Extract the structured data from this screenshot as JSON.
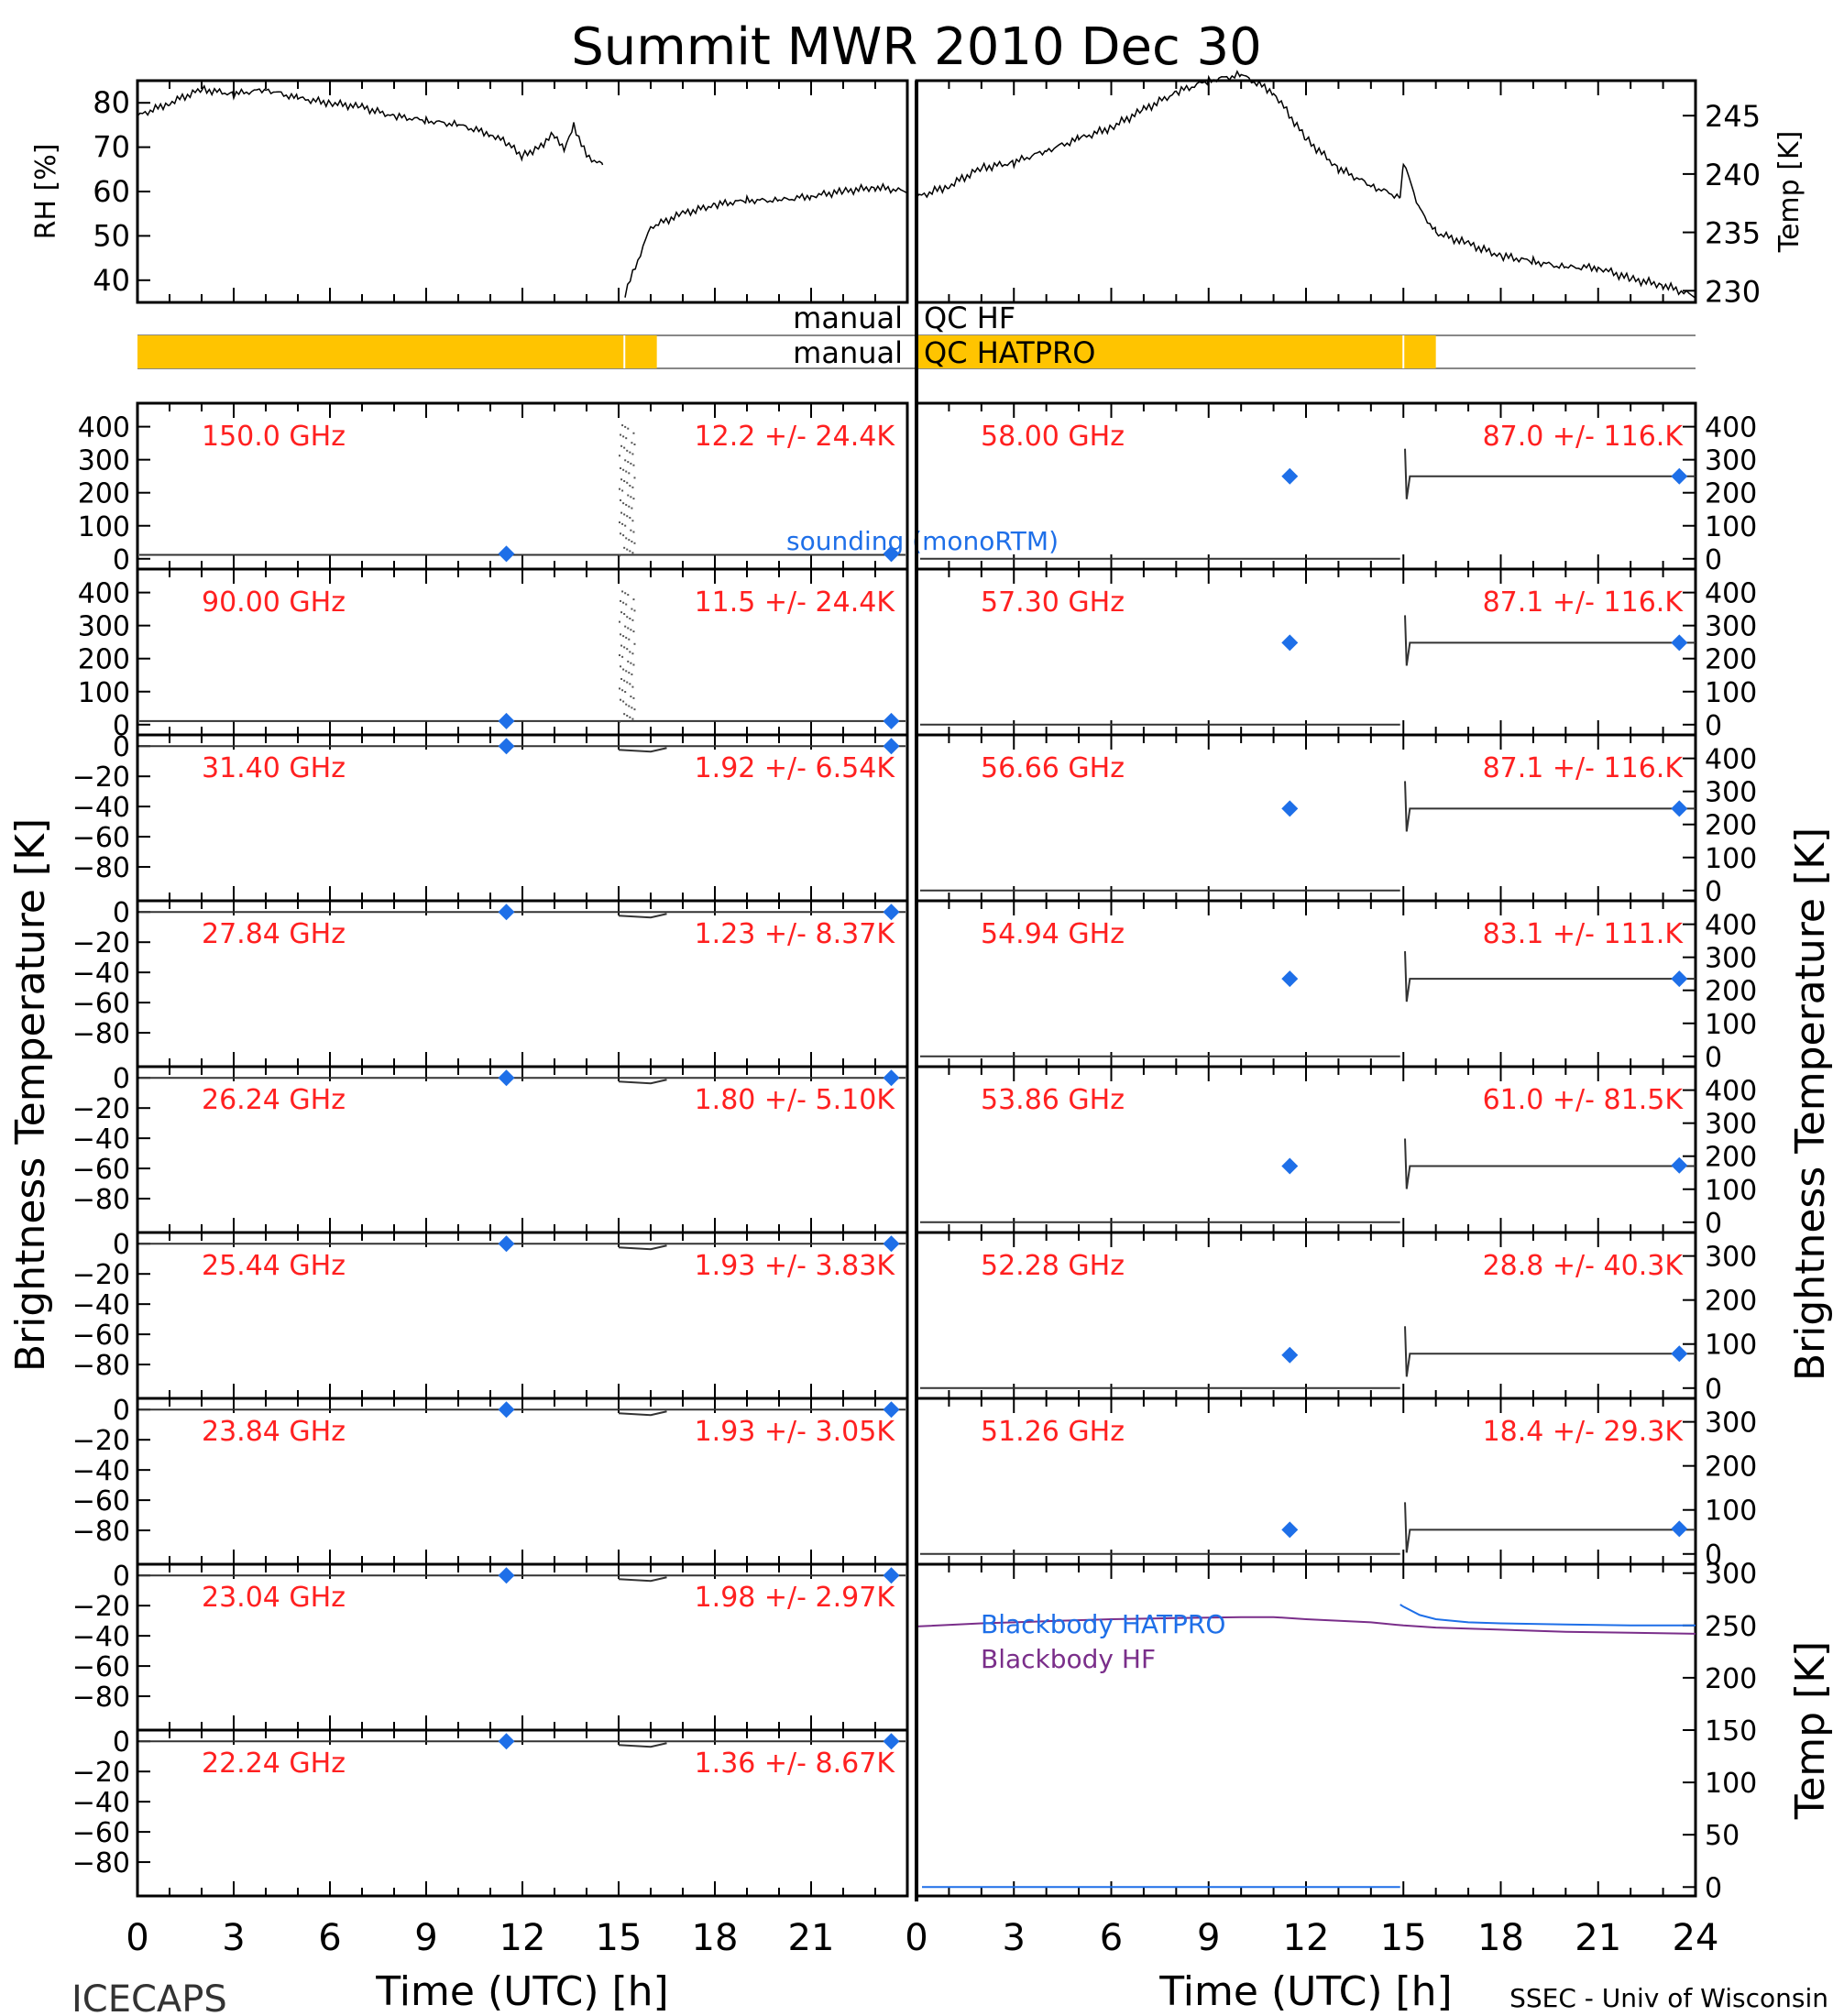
{
  "title": "Summit MWR 2010 Dec 30",
  "footer": {
    "left": "ICECAPS",
    "right": "SSEC - Univ of Wisconsin"
  },
  "axes": {
    "xlabel": "Time (UTC) [h]",
    "xticks": [
      0,
      3,
      6,
      9,
      12,
      15,
      18,
      21
    ],
    "xticks_right": [
      0,
      3,
      6,
      9,
      12,
      15,
      18,
      21,
      24
    ],
    "left_ylabel": "Brightness Temperature [K]",
    "right_ylabel": "Brightness Temperature [K]",
    "rh_label": "RH [%]",
    "temp_label": "Temp [K]",
    "bb_temp_label": "Temp [K]"
  },
  "qc": {
    "hf_label": "manual",
    "hf_name": "QC HF",
    "hatpro_label": "manual",
    "hatpro_name": "QC HATPRO",
    "flag_color": "#FFC400",
    "hf_flagged_ranges": [],
    "hatpro_flagged_ranges": [
      [
        0,
        16
      ],
      [
        24,
        40
      ]
    ]
  },
  "legend": {
    "sounding": "sounding (monoRTM)",
    "bb_hatpro": "Blackbody HATPRO",
    "bb_hf": "Blackbody HF"
  },
  "colors": {
    "label": "#FF2020",
    "sounding": "#1E6FE8",
    "bb_hatpro": "#1E6FE8",
    "bb_hf": "#7A2E8A",
    "line": "#000000"
  },
  "chart_data": [
    {
      "type": "line",
      "name": "RH",
      "ylabel": "RH [%]",
      "ylim": [
        35,
        85
      ],
      "yticks": [
        40,
        50,
        60,
        70,
        80
      ],
      "x": [
        0,
        1,
        2,
        3,
        4,
        5,
        6,
        7,
        8,
        9,
        10,
        11,
        11.5,
        12,
        12.5,
        13,
        13.3,
        13.6,
        14,
        14.5,
        15,
        15.2,
        16,
        17,
        18,
        19,
        20,
        21,
        22,
        23,
        24
      ],
      "y": [
        77,
        80,
        83,
        82,
        83,
        81,
        80,
        79,
        77,
        76,
        75,
        73,
        71,
        68,
        70,
        73,
        69,
        75,
        68,
        66,
        null,
        37,
        52,
        55,
        57,
        58,
        58,
        59,
        60,
        61,
        60
      ]
    },
    {
      "type": "line",
      "name": "Temp",
      "ylabel": "Temp [K]",
      "ylim": [
        229,
        248
      ],
      "yticks": [
        230,
        235,
        240,
        245
      ],
      "x": [
        0,
        1,
        2,
        3,
        4,
        5,
        6,
        7,
        8,
        9,
        10,
        11,
        12,
        13,
        14,
        14.9,
        15,
        15.5,
        16,
        17,
        18,
        19,
        20,
        21,
        22,
        23,
        24
      ],
      "y": [
        238,
        239,
        240.5,
        241,
        242,
        243,
        244,
        245.5,
        247,
        248,
        248.5,
        247,
        243,
        240.5,
        239,
        238,
        241,
        237,
        235,
        234,
        233,
        232.5,
        232,
        232,
        231,
        230.5,
        229.5
      ]
    },
    {
      "type": "line",
      "name": "HF 150.0 GHz",
      "label": "150.0 GHz",
      "stats": "12.2 +/-  24.4K",
      "ylim": [
        -20,
        460
      ],
      "yticks": [
        0,
        100,
        200,
        300,
        400
      ],
      "base": 12,
      "noisy": true,
      "sounding": [
        [
          11.5,
          15
        ],
        [
          23.5,
          15
        ]
      ]
    },
    {
      "type": "line",
      "name": "HF 90.00 GHz",
      "label": "90.00 GHz",
      "stats": "11.5 +/-  24.4K",
      "ylim": [
        -20,
        460
      ],
      "yticks": [
        0,
        100,
        200,
        300,
        400
      ],
      "base": 11,
      "noisy": true,
      "sounding": [
        [
          11.5,
          11
        ],
        [
          23.5,
          11
        ]
      ]
    },
    {
      "type": "line",
      "name": "HF 31.40 GHz",
      "label": "31.40 GHz",
      "stats": "1.92 +/- 6.54K",
      "ylim": [
        -100,
        5
      ],
      "yticks": [
        0,
        -20,
        -40,
        -60,
        -80
      ],
      "base": 0,
      "noisy": false,
      "sounding": [
        [
          11.5,
          0
        ],
        [
          23.5,
          0
        ]
      ]
    },
    {
      "type": "line",
      "name": "HF 27.84 GHz",
      "label": "27.84 GHz",
      "stats": "1.23 +/- 8.37K",
      "ylim": [
        -100,
        5
      ],
      "yticks": [
        0,
        -20,
        -40,
        -60,
        -80
      ],
      "base": 0,
      "noisy": false,
      "sounding": [
        [
          11.5,
          0
        ],
        [
          23.5,
          0
        ]
      ]
    },
    {
      "type": "line",
      "name": "HF 26.24 GHz",
      "label": "26.24 GHz",
      "stats": "1.80 +/- 5.10K",
      "ylim": [
        -100,
        5
      ],
      "yticks": [
        0,
        -20,
        -40,
        -60,
        -80
      ],
      "base": 0,
      "noisy": false,
      "sounding": [
        [
          11.5,
          0
        ],
        [
          23.5,
          0
        ]
      ]
    },
    {
      "type": "line",
      "name": "HF 25.44 GHz",
      "label": "25.44 GHz",
      "stats": "1.93 +/- 3.83K",
      "ylim": [
        -100,
        5
      ],
      "yticks": [
        0,
        -20,
        -40,
        -60,
        -80
      ],
      "base": 0,
      "noisy": false,
      "sounding": [
        [
          11.5,
          0
        ],
        [
          23.5,
          0
        ]
      ]
    },
    {
      "type": "line",
      "name": "HF 23.84 GHz",
      "label": "23.84 GHz",
      "stats": "1.93 +/- 3.05K",
      "ylim": [
        -100,
        5
      ],
      "yticks": [
        0,
        -20,
        -40,
        -60,
        -80
      ],
      "base": 0,
      "noisy": false,
      "sounding": [
        [
          11.5,
          0
        ],
        [
          23.5,
          0
        ]
      ]
    },
    {
      "type": "line",
      "name": "HF 23.04 GHz",
      "label": "23.04 GHz",
      "stats": "1.98 +/- 2.97K",
      "ylim": [
        -100,
        5
      ],
      "yticks": [
        0,
        -20,
        -40,
        -60,
        -80
      ],
      "base": 0,
      "noisy": false,
      "sounding": [
        [
          11.5,
          0
        ],
        [
          23.5,
          0
        ]
      ]
    },
    {
      "type": "line",
      "name": "HF 22.24 GHz",
      "label": "22.24 GHz",
      "stats": "1.36 +/- 8.67K",
      "ylim": [
        -100,
        5
      ],
      "yticks": [
        0,
        -20,
        -40,
        -60,
        -80
      ],
      "base": 0,
      "noisy": false,
      "sounding": [
        [
          11.5,
          0
        ],
        [
          23.5,
          0
        ]
      ]
    },
    {
      "type": "line",
      "name": "HATPRO 58.00 GHz",
      "label": "58.00 GHz",
      "stats": "87.0 +/-  116.K",
      "ylim": [
        -20,
        460
      ],
      "yticks": [
        0,
        100,
        200,
        300,
        400
      ],
      "pre": 0,
      "post": 250,
      "sounding": [
        [
          11.5,
          250
        ],
        [
          23.5,
          250
        ]
      ]
    },
    {
      "type": "line",
      "name": "HATPRO 57.30 GHz",
      "label": "57.30 GHz",
      "stats": "87.1 +/-  116.K",
      "ylim": [
        -20,
        460
      ],
      "yticks": [
        0,
        100,
        200,
        300,
        400
      ],
      "pre": 0,
      "post": 248,
      "sounding": [
        [
          11.5,
          248
        ],
        [
          23.5,
          248
        ]
      ]
    },
    {
      "type": "line",
      "name": "HATPRO 56.66 GHz",
      "label": "56.66 GHz",
      "stats": "87.1 +/-  116.K",
      "ylim": [
        -20,
        460
      ],
      "yticks": [
        0,
        100,
        200,
        300,
        400
      ],
      "pre": 0,
      "post": 248,
      "sounding": [
        [
          11.5,
          248
        ],
        [
          23.5,
          248
        ]
      ]
    },
    {
      "type": "line",
      "name": "HATPRO 54.94 GHz",
      "label": "54.94 GHz",
      "stats": "83.1 +/-  111.K",
      "ylim": [
        -20,
        460
      ],
      "yticks": [
        0,
        100,
        200,
        300,
        400
      ],
      "pre": 0,
      "post": 235,
      "sounding": [
        [
          11.5,
          235
        ],
        [
          23.5,
          235
        ]
      ]
    },
    {
      "type": "line",
      "name": "HATPRO 53.86 GHz",
      "label": "53.86 GHz",
      "stats": "61.0 +/-  81.5K",
      "ylim": [
        -20,
        460
      ],
      "yticks": [
        0,
        100,
        200,
        300,
        400
      ],
      "pre": 0,
      "post": 170,
      "sounding": [
        [
          11.5,
          170
        ],
        [
          23.5,
          172
        ]
      ]
    },
    {
      "type": "line",
      "name": "HATPRO 52.28 GHz",
      "label": "52.28 GHz",
      "stats": "28.8 +/-  40.3K",
      "ylim": [
        -15,
        345
      ],
      "yticks": [
        0,
        100,
        200,
        300
      ],
      "pre": 0,
      "post": 78,
      "sounding": [
        [
          11.5,
          75
        ],
        [
          23.5,
          78
        ]
      ]
    },
    {
      "type": "line",
      "name": "HATPRO 51.26 GHz",
      "label": "51.26 GHz",
      "stats": "18.4 +/-  29.3K",
      "ylim": [
        -15,
        345
      ],
      "yticks": [
        0,
        100,
        200,
        300
      ],
      "pre": 0,
      "post": 55,
      "sounding": [
        [
          11.5,
          55
        ],
        [
          23.5,
          57
        ]
      ]
    },
    {
      "type": "line",
      "name": "Blackbody",
      "ylabel": "Temp [K]",
      "ylim": [
        -5,
        305
      ],
      "yticks": [
        0,
        50,
        100,
        150,
        200,
        250,
        300
      ],
      "series": [
        {
          "name": "Blackbody HATPRO",
          "x": [
            14.9,
            15.0,
            15.5,
            16,
            17,
            18,
            20,
            22,
            24
          ],
          "y": [
            270,
            268,
            260,
            256,
            253,
            252,
            251,
            250,
            250
          ]
        },
        {
          "name": "Blackbody HF",
          "x": [
            0,
            2,
            4,
            6,
            8,
            10,
            11,
            12,
            14,
            15,
            16,
            18,
            20,
            22,
            24
          ],
          "y": [
            249,
            252,
            254,
            256,
            257,
            258,
            258,
            256,
            253,
            250,
            248,
            246,
            244,
            243,
            242
          ]
        }
      ]
    }
  ]
}
